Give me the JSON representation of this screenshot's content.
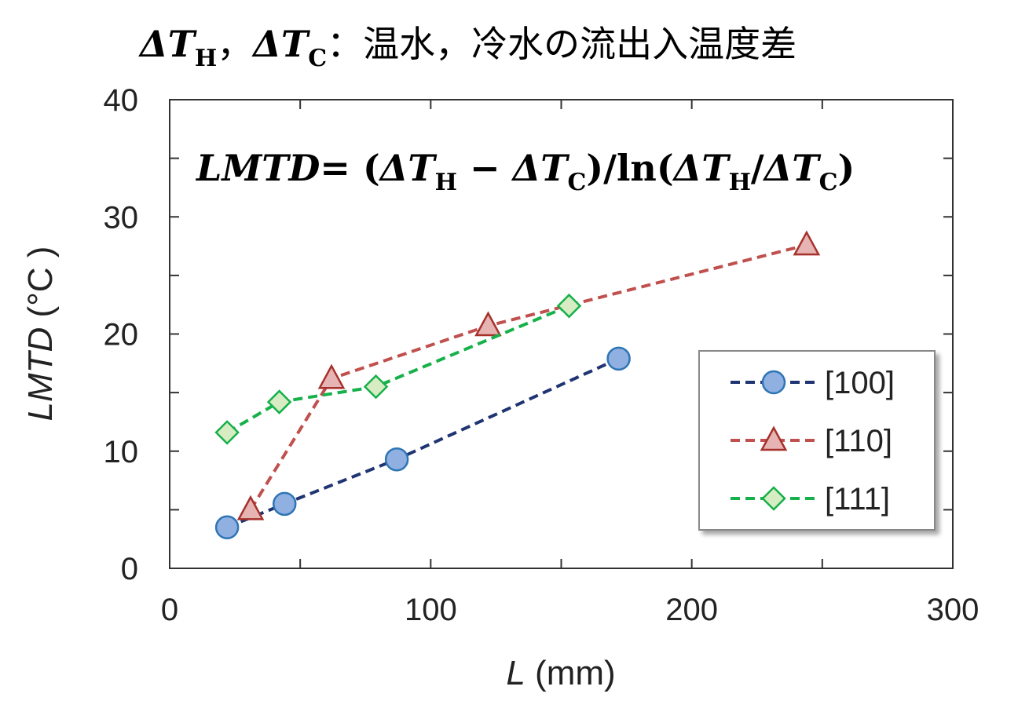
{
  "header": {
    "title_symbols": [
      "ΔT",
      "H",
      "，",
      "ΔT",
      "C",
      "："
    ],
    "title_text": "温水，冷水の流出入温度差"
  },
  "formula": {
    "lhs": "LMTD",
    "rhs_parts": [
      "= (",
      "ΔT",
      "H",
      " − ",
      "ΔT",
      "C",
      ")/ln(",
      "ΔT",
      "H",
      "/",
      "ΔT",
      "C",
      ")"
    ]
  },
  "chart_data": {
    "type": "line",
    "xlabel_italic": "L",
    "xlabel_unit": " (mm)",
    "ylabel_italic": "LMTD",
    "ylabel_unit": " (°C )",
    "xlim": [
      0,
      300
    ],
    "ylim": [
      0,
      40
    ],
    "xticks": [
      0,
      100,
      200,
      300
    ],
    "yticks": [
      0,
      10,
      20,
      30,
      40
    ],
    "grid": false,
    "legend_position": "lower-right",
    "series": [
      {
        "name": "[100]",
        "marker": "circle",
        "line_color": "#1f3472",
        "marker_fill": "#8fb0e0",
        "marker_edge": "#2e75b6",
        "x": [
          22,
          44,
          87,
          172
        ],
        "y": [
          3.5,
          5.5,
          9.3,
          17.9
        ]
      },
      {
        "name": "[110]",
        "marker": "triangle",
        "line_color": "#c0504d",
        "marker_fill": "#e6b4b2",
        "marker_edge": "#a6302c",
        "x": [
          31,
          62,
          122,
          244
        ],
        "y": [
          5.0,
          16.2,
          20.7,
          27.6
        ]
      },
      {
        "name": "[111]",
        "marker": "diamond",
        "line_color": "#16b14a",
        "marker_fill": "#d8ecc4",
        "marker_edge": "#16b14a",
        "x": [
          22,
          42,
          79,
          153
        ],
        "y": [
          11.6,
          14.2,
          15.5,
          22.4
        ]
      }
    ]
  }
}
